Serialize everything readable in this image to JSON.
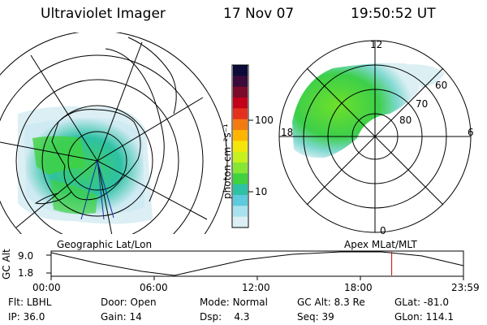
{
  "header": {
    "title": "Ultraviolet Imager",
    "date": "17 Nov 07",
    "time": "19:50:52 UT"
  },
  "colorbar": {
    "unit_label": "photon cm⁻²s⁻¹",
    "ticks": [
      "100",
      "10"
    ],
    "colors": [
      "#0b0b3a",
      "#3a0b3a",
      "#7a0b2a",
      "#c2001a",
      "#e4301c",
      "#f37a10",
      "#ffb400",
      "#f5e60a",
      "#c6f01e",
      "#86e634",
      "#40d23e",
      "#2ec1a4",
      "#5dcadd",
      "#a9e2ee",
      "#dbeff4"
    ]
  },
  "left_panel": {
    "caption": "Geographic Lat/Lon"
  },
  "right_panel": {
    "caption": "Apex MLat/MLT",
    "mlt_labels": {
      "top": "12",
      "left": "18",
      "right": "6",
      "bottom": "0"
    },
    "lat_labels": [
      "60",
      "70",
      "80"
    ]
  },
  "timeline": {
    "axis_label": "GC Alt",
    "y_ticks": [
      "9.0",
      "1.8"
    ],
    "x_ticks": [
      "00:00",
      "06:00",
      "12:00",
      "18:00",
      "23:59"
    ],
    "marker_time_fraction": 0.826
  },
  "status": {
    "flt": {
      "label": "Flt:",
      "value": "LBHL"
    },
    "ip": {
      "label": "IP:",
      "value": "36.0"
    },
    "door": {
      "label": "Door:",
      "value": "Open"
    },
    "gain": {
      "label": "Gain:",
      "value": "14"
    },
    "mode": {
      "label": "Mode:",
      "value": "Normal"
    },
    "dsp": {
      "label": "Dsp:",
      "value": "4.3"
    },
    "gcalt": {
      "label": "GC Alt:",
      "value": "8.3 Re"
    },
    "seq": {
      "label": "Seq:",
      "value": "39"
    },
    "glat": {
      "label": "GLat:",
      "value": "-81.0"
    },
    "glon": {
      "label": "GLon:",
      "value": "114.1"
    }
  }
}
